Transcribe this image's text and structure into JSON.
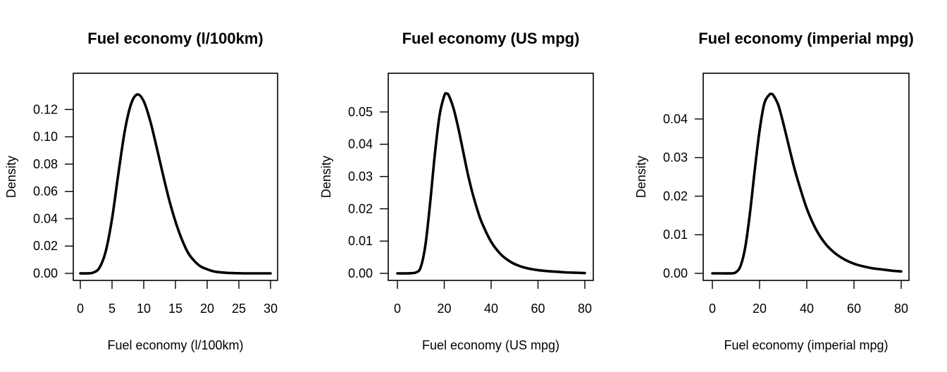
{
  "chart_data": [
    {
      "type": "line",
      "title": "Fuel economy (l/100km)",
      "xlabel": "Fuel economy (l/100km)",
      "ylabel": "Density",
      "xlim": [
        0,
        30
      ],
      "ylim": [
        0,
        0.13
      ],
      "xticks": [
        "0",
        "5",
        "10",
        "15",
        "20",
        "25",
        "30"
      ],
      "yticks": [
        "0.00",
        "0.02",
        "0.04",
        "0.06",
        "0.08",
        "0.10",
        "0.12"
      ],
      "series": [
        {
          "x": [
            0,
            1,
            2,
            3,
            4,
            5,
            6,
            7,
            8,
            9,
            10,
            11,
            12,
            13,
            14,
            15,
            16,
            17,
            18,
            19,
            20,
            21,
            22,
            23,
            24,
            25,
            26,
            27,
            28,
            29,
            30
          ],
          "y": [
            0.0,
            0.0,
            0.0005,
            0.004,
            0.016,
            0.04,
            0.073,
            0.104,
            0.124,
            0.131,
            0.126,
            0.112,
            0.093,
            0.073,
            0.054,
            0.038,
            0.025,
            0.015,
            0.009,
            0.005,
            0.003,
            0.0015,
            0.0008,
            0.0004,
            0.0002,
            0.0001,
            0.0,
            0.0,
            0.0,
            0.0,
            0.0
          ]
        }
      ]
    },
    {
      "type": "line",
      "title": "Fuel economy (US mpg)",
      "xlabel": "Fuel economy (US mpg)",
      "ylabel": "Density",
      "xlim": [
        0,
        80
      ],
      "ylim": [
        0,
        0.055
      ],
      "xticks": [
        "0",
        "20",
        "40",
        "60",
        "80"
      ],
      "yticks": [
        "0.00",
        "0.01",
        "0.02",
        "0.03",
        "0.04",
        "0.05"
      ],
      "series": [
        {
          "x": [
            0,
            4,
            8,
            10,
            12,
            14,
            16,
            18,
            20,
            21,
            22,
            24,
            26,
            28,
            30,
            32,
            34,
            36,
            40,
            44,
            48,
            52,
            56,
            60,
            64,
            68,
            72,
            76,
            80
          ],
          "y": [
            0.0,
            0.0,
            0.0003,
            0.002,
            0.009,
            0.022,
            0.037,
            0.049,
            0.055,
            0.0557,
            0.055,
            0.051,
            0.045,
            0.038,
            0.031,
            0.025,
            0.02,
            0.0158,
            0.0098,
            0.006,
            0.0037,
            0.0023,
            0.0015,
            0.001,
            0.0007,
            0.0005,
            0.0003,
            0.0002,
            0.0001
          ]
        }
      ]
    },
    {
      "type": "line",
      "title": "Fuel economy (imperial mpg)",
      "xlabel": "Fuel economy (imperial mpg)",
      "ylabel": "Density",
      "xlim": [
        0,
        80
      ],
      "ylim": [
        0,
        0.046
      ],
      "xticks": [
        "0",
        "20",
        "40",
        "60",
        "80"
      ],
      "yticks": [
        "0.00",
        "0.01",
        "0.02",
        "0.03",
        "0.04"
      ],
      "series": [
        {
          "x": [
            0,
            4,
            8,
            10,
            12,
            14,
            16,
            18,
            20,
            22,
            24,
            25,
            26,
            28,
            30,
            32,
            34,
            36,
            40,
            44,
            48,
            52,
            56,
            60,
            64,
            68,
            72,
            76,
            80
          ],
          "y": [
            0.0,
            0.0,
            0.0,
            0.0003,
            0.002,
            0.007,
            0.016,
            0.027,
            0.037,
            0.044,
            0.0462,
            0.0465,
            0.046,
            0.0435,
            0.039,
            0.034,
            0.029,
            0.0245,
            0.0168,
            0.0113,
            0.0076,
            0.0052,
            0.0036,
            0.0025,
            0.0018,
            0.0013,
            0.001,
            0.0007,
            0.0005
          ]
        }
      ]
    }
  ]
}
